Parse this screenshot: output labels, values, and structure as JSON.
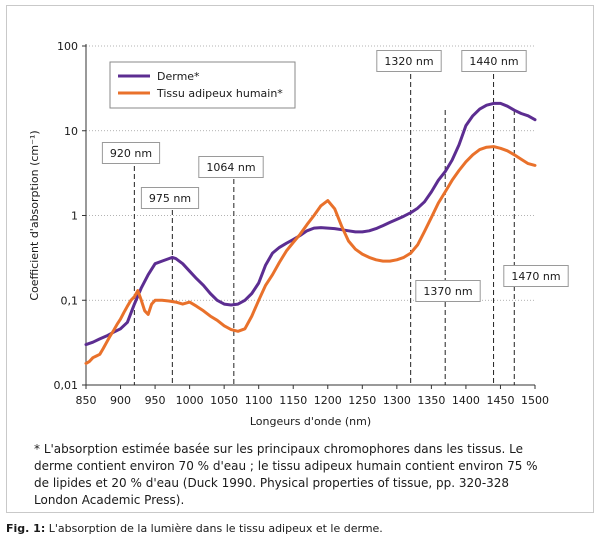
{
  "chart_data": {
    "type": "line",
    "xlabel": "Longeurs d'onde (nm)",
    "ylabel": "Coefficient d'absorption (cm⁻¹)",
    "xlim": [
      850,
      1500
    ],
    "ylim": [
      0.01,
      100
    ],
    "y_scale": "log",
    "xticks": [
      850,
      900,
      950,
      1000,
      1050,
      1100,
      1150,
      1200,
      1250,
      1300,
      1350,
      1400,
      1450,
      1500
    ],
    "xtick_labels": [
      "850",
      "900",
      "950",
      "1000",
      "1050",
      "1100",
      "1150",
      "1200",
      "1250",
      "1300",
      "1350",
      "1400",
      "1450",
      "1500"
    ],
    "yticks": [
      0.01,
      0.1,
      1,
      10,
      100
    ],
    "ytick_labels": [
      "0,01",
      "0,1",
      "1",
      "10",
      "100"
    ],
    "grid": "horizontal-dotted",
    "legend_position": "top-left",
    "series": [
      {
        "name": "Derme*",
        "color": "#5c2d91",
        "x": [
          850,
          860,
          870,
          880,
          890,
          900,
          910,
          920,
          930,
          940,
          950,
          960,
          970,
          975,
          980,
          990,
          1000,
          1010,
          1020,
          1030,
          1040,
          1050,
          1060,
          1070,
          1080,
          1090,
          1100,
          1110,
          1120,
          1130,
          1140,
          1150,
          1160,
          1170,
          1180,
          1190,
          1200,
          1210,
          1220,
          1230,
          1240,
          1250,
          1260,
          1270,
          1280,
          1290,
          1300,
          1310,
          1320,
          1330,
          1340,
          1350,
          1360,
          1370,
          1380,
          1390,
          1400,
          1410,
          1420,
          1430,
          1440,
          1450,
          1460,
          1470,
          1480,
          1490,
          1500
        ],
        "y": [
          0.03,
          0.032,
          0.035,
          0.038,
          0.042,
          0.046,
          0.055,
          0.09,
          0.14,
          0.2,
          0.27,
          0.29,
          0.31,
          0.32,
          0.31,
          0.27,
          0.22,
          0.18,
          0.15,
          0.12,
          0.1,
          0.09,
          0.088,
          0.09,
          0.1,
          0.12,
          0.16,
          0.26,
          0.36,
          0.42,
          0.47,
          0.52,
          0.58,
          0.66,
          0.71,
          0.72,
          0.71,
          0.7,
          0.68,
          0.66,
          0.64,
          0.64,
          0.66,
          0.7,
          0.76,
          0.83,
          0.9,
          0.98,
          1.08,
          1.22,
          1.45,
          1.9,
          2.6,
          3.3,
          4.5,
          6.8,
          11.5,
          15,
          18,
          20,
          21,
          21,
          19.5,
          17.5,
          16,
          15,
          13.5
        ]
      },
      {
        "name": "Tissu adipeux humain*",
        "color": "#e9712b",
        "x": [
          850,
          855,
          860,
          865,
          870,
          875,
          880,
          885,
          890,
          895,
          900,
          905,
          910,
          915,
          920,
          925,
          930,
          935,
          940,
          945,
          950,
          960,
          970,
          980,
          990,
          1000,
          1010,
          1020,
          1030,
          1040,
          1050,
          1060,
          1070,
          1080,
          1090,
          1100,
          1110,
          1120,
          1130,
          1140,
          1150,
          1160,
          1170,
          1180,
          1190,
          1200,
          1210,
          1220,
          1230,
          1240,
          1250,
          1260,
          1270,
          1280,
          1290,
          1300,
          1310,
          1320,
          1330,
          1340,
          1350,
          1360,
          1370,
          1380,
          1390,
          1400,
          1410,
          1420,
          1430,
          1440,
          1450,
          1460,
          1470,
          1480,
          1490,
          1500
        ],
        "y": [
          0.018,
          0.019,
          0.021,
          0.022,
          0.023,
          0.027,
          0.032,
          0.038,
          0.044,
          0.052,
          0.06,
          0.072,
          0.085,
          0.1,
          0.11,
          0.13,
          0.1,
          0.075,
          0.068,
          0.09,
          0.1,
          0.1,
          0.098,
          0.095,
          0.09,
          0.095,
          0.085,
          0.075,
          0.065,
          0.058,
          0.05,
          0.045,
          0.043,
          0.046,
          0.065,
          0.1,
          0.15,
          0.2,
          0.28,
          0.38,
          0.48,
          0.6,
          0.78,
          1.0,
          1.3,
          1.5,
          1.2,
          0.75,
          0.5,
          0.4,
          0.35,
          0.32,
          0.3,
          0.29,
          0.29,
          0.3,
          0.32,
          0.36,
          0.45,
          0.65,
          0.95,
          1.4,
          1.9,
          2.6,
          3.4,
          4.3,
          5.2,
          6.0,
          6.4,
          6.5,
          6.2,
          5.8,
          5.2,
          4.6,
          4.1,
          3.9
        ]
      }
    ],
    "annotations": [
      {
        "label": "920 nm",
        "x": 920
      },
      {
        "label": "975 nm",
        "x": 975
      },
      {
        "label": "1064 nm",
        "x": 1064
      },
      {
        "label": "1320 nm",
        "x": 1320
      },
      {
        "label": "1370 nm",
        "x": 1370
      },
      {
        "label": "1440 nm",
        "x": 1440
      },
      {
        "label": "1470 nm",
        "x": 1470
      }
    ]
  },
  "footnote": "* L'absorption estimée basée sur les principaux chromophores dans les tissus. Le derme contient environ 70 % d'eau ; le tissu adipeux humain contient environ 75 % de lipides et 20 % d'eau (Duck 1990. Physical properties of tissue, pp. 320-328 London Academic Press).",
  "caption": {
    "prefix": "Fig. 1:",
    "text": " L'absorption de la lumière dans le tissu adipeux et le derme."
  }
}
